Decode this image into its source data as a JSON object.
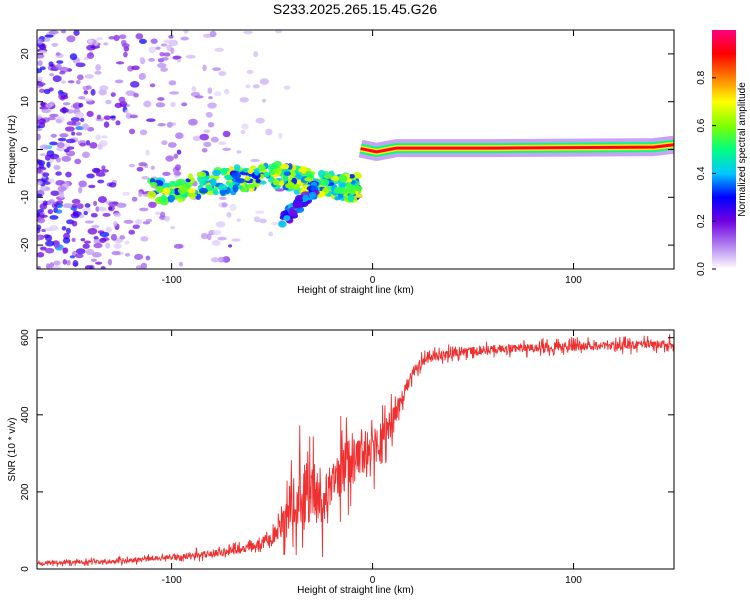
{
  "figure_title": "S233.2025.265.15.45.G26",
  "chart_data": [
    {
      "type": "heatmap",
      "title": "S233.2025.265.15.45.G26",
      "xlabel": "Height of straight line (km)",
      "ylabel": "Frequency (Hz)",
      "xlim": [
        -167,
        150
      ],
      "ylim": [
        -25,
        25
      ],
      "xticks": [
        -100,
        0,
        100
      ],
      "xtick_labels": [
        "-100",
        "0",
        "100"
      ],
      "yticks": [
        -20,
        -10,
        0,
        10,
        20
      ],
      "ytick_labels": [
        "-20",
        "-10",
        "0",
        "10",
        "20"
      ],
      "colorbar": {
        "label": "Normalized spectral amplitude",
        "range": [
          0,
          1
        ],
        "ticks": [
          0,
          0.2,
          0.4,
          0.6,
          0.8
        ],
        "tick_labels": [
          "0.0",
          "0.2",
          "0.4",
          "0.6",
          "0.8"
        ],
        "colormap": [
          "#ffffff",
          "#b080f0",
          "#7000e0",
          "#0000ff",
          "#00c8ff",
          "#00ff80",
          "#80ff00",
          "#ffff00",
          "#ff8000",
          "#ff0000",
          "#ff0080"
        ]
      },
      "features": [
        {
          "name": "scattered noise",
          "x_range": [
            -167,
            -60
          ],
          "y_range": [
            -25,
            25
          ],
          "amplitude": 0.15
        },
        {
          "name": "descending track",
          "points": [
            [
              -110,
              -9
            ],
            [
              -80,
              -7
            ],
            [
              -50,
              -5
            ],
            [
              -30,
              -7
            ],
            [
              -15,
              -8
            ],
            [
              -7,
              -8
            ]
          ],
          "amplitude": 0.6
        },
        {
          "name": "lower branch",
          "points": [
            [
              -45,
              -15
            ],
            [
              -35,
              -11
            ],
            [
              -28,
              -8
            ]
          ],
          "amplitude": 0.35
        },
        {
          "name": "steady carrier line",
          "points": [
            [
              -6,
              0.2
            ],
            [
              2,
              -0.5
            ],
            [
              12,
              0.3
            ],
            [
              60,
              0.3
            ],
            [
              100,
              0.4
            ],
            [
              140,
              0.5
            ],
            [
              150,
              1.0
            ]
          ],
          "amplitude": 0.95
        }
      ]
    },
    {
      "type": "line",
      "xlabel": "Height of straight line (km)",
      "ylabel": "SNR (10 * v/v)",
      "xlim": [
        -167,
        150
      ],
      "ylim": [
        0,
        620
      ],
      "xticks": [
        -100,
        0,
        100
      ],
      "xtick_labels": [
        "-100",
        "0",
        "100"
      ],
      "yticks": [
        0,
        200,
        400,
        600
      ],
      "ytick_labels": [
        "0",
        "200",
        "400",
        "600"
      ],
      "series": [
        {
          "name": "SNR",
          "color": "#f03030",
          "x": [
            -167,
            -140,
            -120,
            -100,
            -80,
            -60,
            -50,
            -45,
            -40,
            -35,
            -30,
            -25,
            -20,
            -15,
            -10,
            -5,
            0,
            5,
            10,
            15,
            20,
            25,
            30,
            40,
            50,
            60,
            80,
            100,
            120,
            150
          ],
          "mean": [
            15,
            18,
            22,
            30,
            40,
            55,
            80,
            120,
            170,
            200,
            210,
            190,
            220,
            260,
            280,
            300,
            310,
            340,
            380,
            450,
            510,
            540,
            550,
            560,
            565,
            570,
            575,
            578,
            580,
            585
          ],
          "noise": [
            10,
            10,
            12,
            15,
            20,
            25,
            40,
            80,
            150,
            200,
            200,
            170,
            150,
            150,
            140,
            130,
            110,
            100,
            80,
            50,
            30,
            28,
            25,
            25,
            25,
            25,
            25,
            25,
            25,
            25
          ]
        }
      ]
    }
  ]
}
